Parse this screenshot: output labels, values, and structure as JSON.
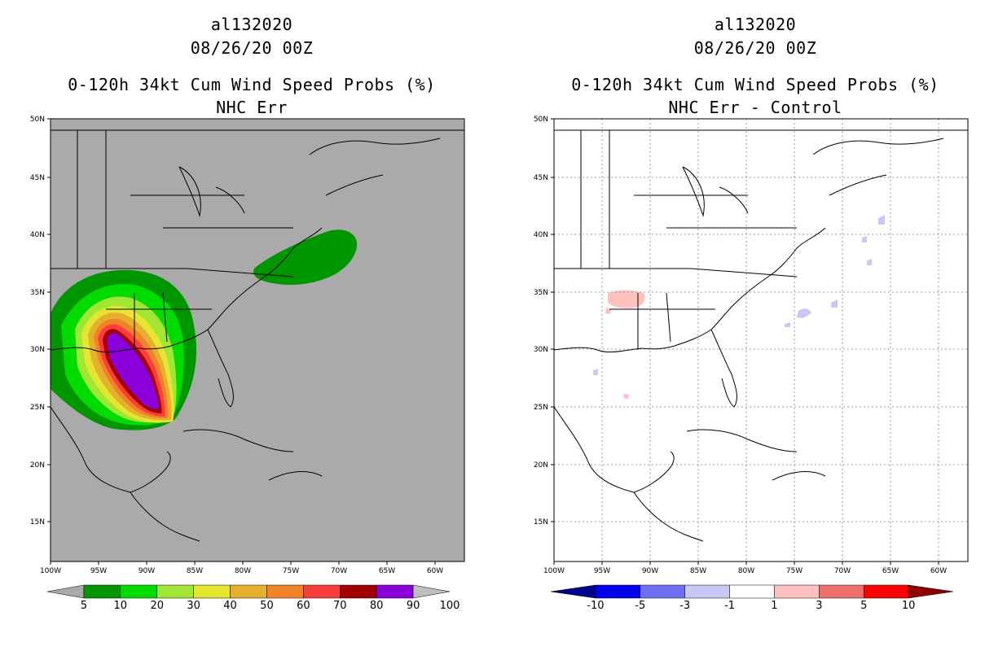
{
  "left": {
    "storm": "al132020",
    "date": "08/26/20 00Z",
    "product": "0-120h 34kt Cum Wind Speed Probs (%)",
    "subtitle": "NHC Err",
    "colorbar": {
      "labels": [
        "5",
        "10",
        "20",
        "30",
        "40",
        "50",
        "60",
        "70",
        "80",
        "90",
        "100"
      ],
      "colors": [
        "#aaaaaa",
        "#009600",
        "#00dc00",
        "#a0e632",
        "#e6e632",
        "#e6af2d",
        "#f08228",
        "#fa3c3c",
        "#a00000",
        "#8c00dc",
        "#bebebe"
      ]
    }
  },
  "right": {
    "storm": "al132020",
    "date": "08/26/20 00Z",
    "product": "0-120h 34kt Cum Wind Speed Probs (%)",
    "subtitle": "NHC Err - Control",
    "colorbar": {
      "labels": [
        "-10",
        "-5",
        "-3",
        "-1",
        "1",
        "3",
        "5",
        "10"
      ],
      "colors": [
        "#00008c",
        "#0000f0",
        "#6e6ef0",
        "#c8c8f5",
        "#ffffff",
        "#ffc0c0",
        "#f07070",
        "#ff0000",
        "#8c0000"
      ]
    }
  },
  "axes": {
    "lat_labels": [
      "50N",
      "45N",
      "40N",
      "35N",
      "30N",
      "25N",
      "20N",
      "15N"
    ],
    "lon_labels": [
      "100W",
      "95W",
      "90W",
      "85W",
      "80W",
      "75W",
      "70W",
      "65W",
      "60W"
    ]
  }
}
